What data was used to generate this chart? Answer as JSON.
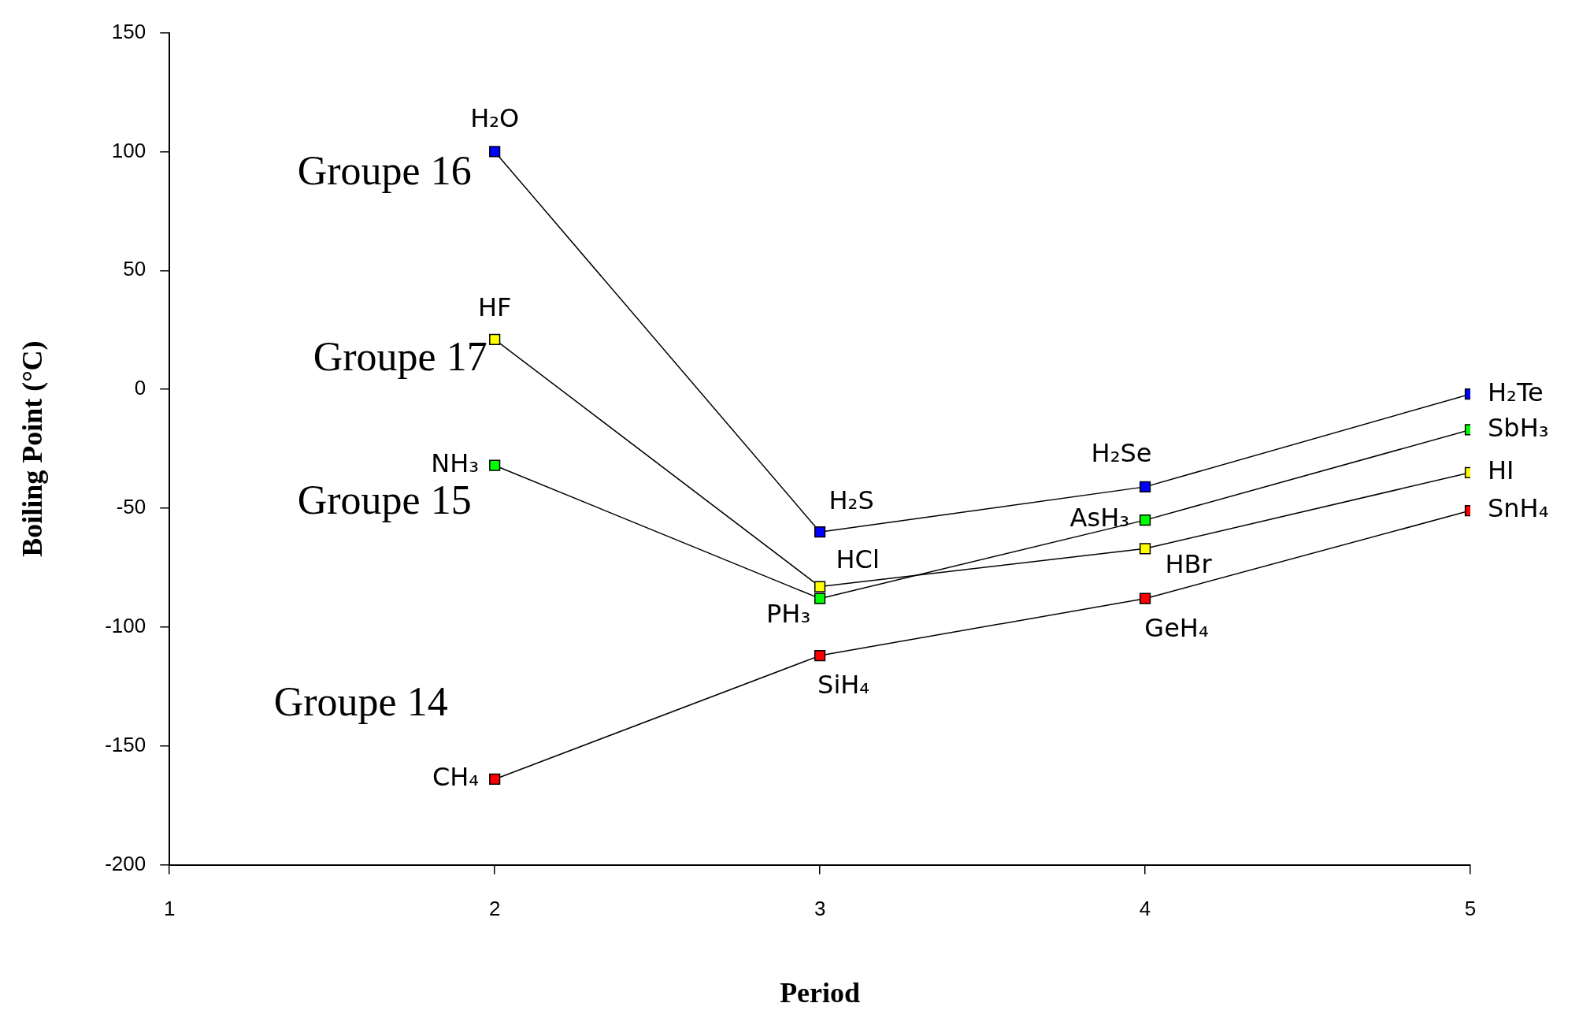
{
  "chart_data": {
    "type": "line",
    "xlabel": "Period",
    "ylabel": "Boiling Point (°C)",
    "xlim": [
      1,
      5
    ],
    "xticks": [
      1,
      2,
      3,
      4,
      5
    ],
    "ylim": [
      -200,
      150
    ],
    "yticks": [
      -200,
      -150,
      -100,
      -50,
      0,
      50,
      100,
      150
    ],
    "grid": false,
    "legend": false,
    "marker": "square",
    "line_style": "solid",
    "series": [
      {
        "name": "Groupe 16",
        "color": "#0000ff",
        "x": [
          2,
          3,
          4,
          5
        ],
        "values": [
          100,
          -60,
          -41,
          -2
        ]
      },
      {
        "name": "Groupe 17",
        "color": "#ffff00",
        "x": [
          2,
          3,
          4,
          5
        ],
        "values": [
          21,
          -83,
          -67,
          -35
        ]
      },
      {
        "name": "Groupe 15",
        "color": "#00ff00",
        "x": [
          2,
          3,
          4,
          5
        ],
        "values": [
          -32,
          -88,
          -55,
          -17
        ]
      },
      {
        "name": "Groupe 14",
        "color": "#ff0000",
        "x": [
          2,
          3,
          4,
          5
        ],
        "values": [
          -164,
          -112,
          -88,
          -51
        ]
      }
    ],
    "annotations": [
      {
        "text": "H₂O",
        "x": 2,
        "y": 100
      },
      {
        "text": "H₂S",
        "x": 3,
        "y": -60
      },
      {
        "text": "H₂Se",
        "x": 4,
        "y": -41
      },
      {
        "text": "H₂Te",
        "x": 5,
        "y": -2
      },
      {
        "text": "HF",
        "x": 2,
        "y": 21
      },
      {
        "text": "HCl",
        "x": 3,
        "y": -83
      },
      {
        "text": "HBr",
        "x": 4,
        "y": -67
      },
      {
        "text": "HI",
        "x": 5,
        "y": -35
      },
      {
        "text": "NH₃",
        "x": 2,
        "y": -32
      },
      {
        "text": "PH₃",
        "x": 3,
        "y": -88
      },
      {
        "text": "AsH₃",
        "x": 4,
        "y": -55
      },
      {
        "text": "SbH₃",
        "x": 5,
        "y": -17
      },
      {
        "text": "CH₄",
        "x": 2,
        "y": -164
      },
      {
        "text": "SiH₄",
        "x": 3,
        "y": -112
      },
      {
        "text": "GeH₄",
        "x": 4,
        "y": -88
      },
      {
        "text": "SnH₄",
        "x": 5,
        "y": -51
      }
    ]
  }
}
